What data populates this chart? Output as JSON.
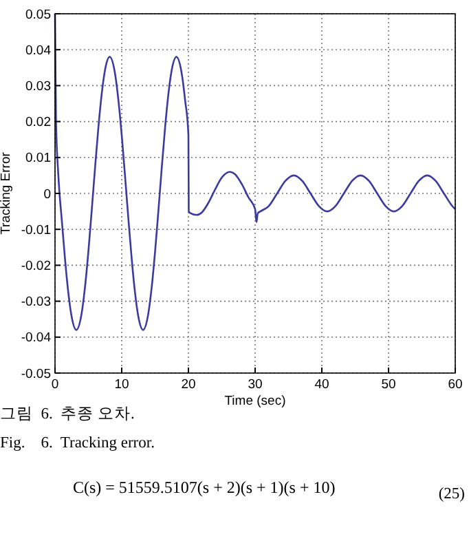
{
  "chart_data": {
    "type": "line",
    "xlabel": "Time (sec)",
    "ylabel": "Tracking Error",
    "xlim": [
      0,
      60
    ],
    "xticks": [
      0,
      10,
      20,
      30,
      40,
      50,
      60
    ],
    "ylim": [
      -0.05,
      0.05
    ],
    "yticks": [
      -0.05,
      -0.04,
      -0.03,
      -0.02,
      -0.01,
      0,
      0.01,
      0.02,
      0.03,
      0.04,
      0.05
    ],
    "grid": true,
    "line_style": "solid",
    "annotations": [
      "그림  6.  추종 오차.",
      "Fig.    6.  Tracking error.",
      "C(s) = 51559.5107(s + 2)(s + 1)(s + 10)",
      "(25)"
    ],
    "series": [
      {
        "color": "#3a3aa0",
        "x": [
          0,
          0.15,
          0.5,
          1,
          1.5,
          2,
          2.5,
          3.2,
          4,
          4.5,
          5,
          5.5,
          6,
          6.5,
          7,
          7.5,
          8.2,
          9,
          9.5,
          10,
          10.5,
          11,
          11.5,
          12,
          12.5,
          13.2,
          14,
          14.5,
          15,
          15.5,
          16,
          16.5,
          17,
          17.5,
          18.2,
          19,
          19.5,
          20,
          20.05,
          20.3,
          21.2,
          22,
          23,
          24,
          25,
          26.2,
          27,
          28,
          29,
          30,
          30.2,
          30.4,
          30.8,
          32.05,
          33.3,
          34.55,
          35.8,
          37.05,
          38.3,
          39.55,
          40.8,
          42.05,
          43.3,
          44.55,
          45.8,
          47.05,
          48.3,
          49.55,
          50.8,
          52.05,
          53.3,
          54.55,
          55.8,
          57.05,
          58.3,
          59.55,
          60
        ],
        "values": [
          0.05,
          0.02,
          0.005,
          -0.0071,
          -0.0183,
          -0.0277,
          -0.0344,
          -0.038,
          -0.0333,
          -0.026,
          -0.0162,
          -0.0048,
          0.0071,
          0.0183,
          0.0277,
          0.0344,
          0.038,
          0.0333,
          0.026,
          0.0162,
          0.0048,
          -0.0071,
          -0.0183,
          -0.0277,
          -0.0344,
          -0.038,
          -0.0333,
          -0.026,
          -0.0162,
          -0.0048,
          0.0071,
          0.0183,
          0.0277,
          0.0344,
          0.038,
          0.0333,
          0.026,
          0.0162,
          -0.005,
          -0.0055,
          -0.006,
          -0.0053,
          -0.0026,
          0.0011,
          0.0044,
          0.006,
          0.0053,
          0.0026,
          -0.0011,
          -0.0044,
          -0.008,
          -0.0055,
          -0.005,
          -0.0035,
          0,
          0.0035,
          0.005,
          0.0035,
          0,
          -0.0035,
          -0.005,
          -0.0035,
          0,
          0.0035,
          0.005,
          0.0035,
          0,
          -0.0035,
          -0.005,
          -0.0035,
          0,
          0.0035,
          0.005,
          0.0035,
          0,
          -0.0035,
          -0.0044
        ]
      }
    ]
  }
}
